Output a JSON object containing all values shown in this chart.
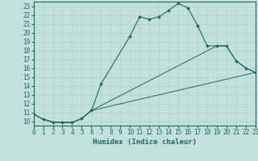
{
  "xlabel": "Humidex (Indice chaleur)",
  "xlim": [
    0,
    23
  ],
  "ylim": [
    9.5,
    23.5
  ],
  "xticks": [
    0,
    1,
    2,
    3,
    4,
    5,
    6,
    7,
    8,
    9,
    10,
    11,
    12,
    13,
    14,
    15,
    16,
    17,
    18,
    19,
    20,
    21,
    22,
    23
  ],
  "yticks": [
    10,
    11,
    12,
    13,
    14,
    15,
    16,
    17,
    18,
    19,
    20,
    21,
    22,
    23
  ],
  "bg_color": "#c2e0dc",
  "line_color": "#1a6b5a",
  "grid_color": "#aecfca",
  "main_x": [
    0,
    1,
    2,
    3,
    4,
    5,
    6,
    7,
    10,
    11,
    12,
    13,
    14,
    15,
    16,
    17,
    18,
    19,
    20,
    21,
    22,
    23
  ],
  "main_y": [
    10.8,
    10.2,
    9.9,
    9.85,
    9.85,
    10.3,
    11.2,
    14.2,
    19.6,
    21.8,
    21.5,
    21.8,
    22.5,
    23.3,
    22.8,
    20.8,
    18.5,
    18.5,
    18.5,
    16.8,
    16.0,
    15.5
  ],
  "line2_x": [
    0,
    1,
    2,
    3,
    4,
    5,
    6,
    19,
    20,
    21,
    22,
    23
  ],
  "line2_y": [
    10.8,
    10.2,
    9.9,
    9.85,
    9.85,
    10.3,
    11.2,
    18.5,
    18.5,
    16.8,
    16.0,
    15.5
  ],
  "line3_x": [
    0,
    1,
    2,
    3,
    4,
    5,
    6,
    23
  ],
  "line3_y": [
    10.8,
    10.2,
    9.9,
    9.85,
    9.85,
    10.3,
    11.2,
    15.5
  ],
  "axis_fontsize": 6.5,
  "tick_fontsize": 5.5
}
